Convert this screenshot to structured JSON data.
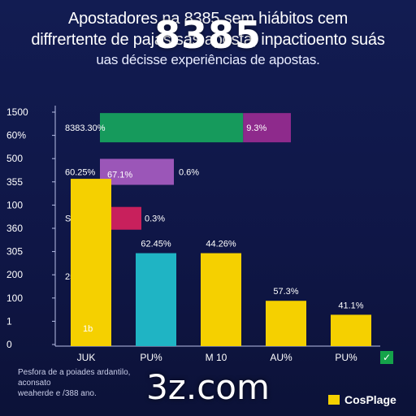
{
  "title": {
    "line1": "Apostadores na 8385 sem hiábitos cem",
    "line2": "diffrertente de pajas sas aposta, inpactioento suás",
    "line3": "uas décisse experiências de apostas."
  },
  "overlay_number": "8385",
  "watermark": "3z.com",
  "footnote": {
    "line1": "Pesfora de a poiades ardantilo, aconsato",
    "line2": "weaherde e /388 ano."
  },
  "legend": {
    "label": "CosPlage",
    "color": "#f5d000"
  },
  "check_icon": "✓",
  "colors": {
    "yellow": "#f5d000",
    "cyan": "#1fb4c4",
    "green": "#169a5c",
    "purple": "#8e2a8c",
    "violet": "#9b56b8",
    "magenta": "#c8205c"
  },
  "chart_data": {
    "type": "bar",
    "y_tick_labels": [
      "1500",
      "60%",
      "500",
      "355",
      "100",
      "360",
      "305",
      "200",
      "100",
      "1",
      "0"
    ],
    "categories": [
      "JUK",
      "PU%",
      "M 10",
      "AU%",
      "PU%"
    ],
    "bars": [
      {
        "category": "JUK",
        "value": 72,
        "label": "1b",
        "color": "#f5d000"
      },
      {
        "category": "PU%",
        "value": 40,
        "label": "62.45%",
        "color": "#1fb4c4"
      },
      {
        "category": "M 10",
        "value": 40,
        "label": "44.26%",
        "color": "#f5d000"
      },
      {
        "category": "AU%",
        "value": 19.5,
        "label": "57.3%",
        "color": "#f5d000"
      },
      {
        "category": "PU%",
        "value": 13.5,
        "label": "41.1%",
        "color": "#f5d000"
      }
    ],
    "hbars": [
      {
        "label": "8383.30%",
        "value_label": "9.3%",
        "level": 94,
        "split": 0.75,
        "left_color": "#169a5c",
        "right_color": "#8e2a8c"
      },
      {
        "label": "60.25%",
        "value_label": "0.6%",
        "level": 75,
        "split": 1.0,
        "left_color": "#9b56b8",
        "right_color": "#9b56b8"
      },
      {
        "label": "S44.8%",
        "value_label": "0.3%",
        "level": 55,
        "split": 1.0,
        "left_color": "#c8205c",
        "right_color": "#c8205c"
      },
      {
        "label": "254.0%",
        "value_label": "67.1%",
        "level": 30,
        "split": 0,
        "left_color": "#f5d000",
        "right_color": "#f5d000"
      }
    ],
    "ymin": 0,
    "ymax": 100,
    "grid": false,
    "legend_position": "bottom-right"
  }
}
